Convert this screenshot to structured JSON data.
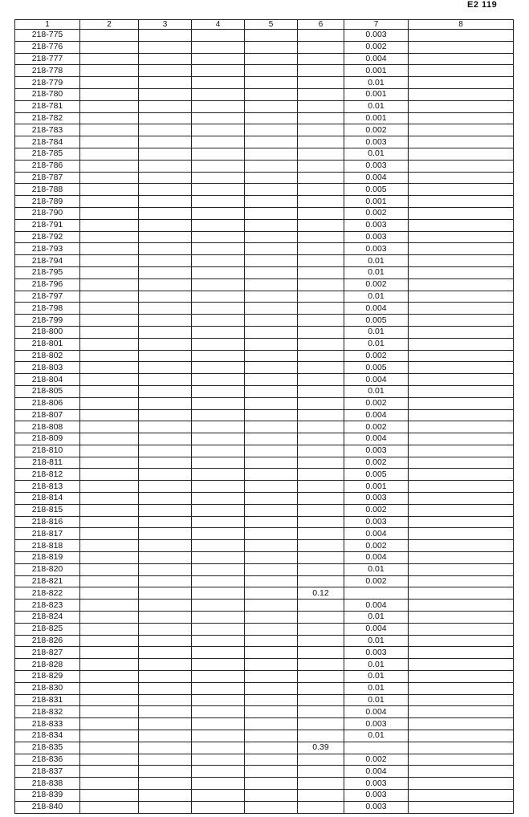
{
  "page_label": "E2 119",
  "headers": [
    "1",
    "2",
    "3",
    "4",
    "5",
    "6",
    "7",
    "8"
  ],
  "rows": [
    [
      "218-775",
      "",
      "",
      "",
      "",
      "",
      "0.003",
      ""
    ],
    [
      "218-776",
      "",
      "",
      "",
      "",
      "",
      "0.002",
      ""
    ],
    [
      "218-777",
      "",
      "",
      "",
      "",
      "",
      "0.004",
      ""
    ],
    [
      "218-778",
      "",
      "",
      "",
      "",
      "",
      "0.001",
      ""
    ],
    [
      "218-779",
      "",
      "",
      "",
      "",
      "",
      "0.01",
      ""
    ],
    [
      "218-780",
      "",
      "",
      "",
      "",
      "",
      "0.001",
      ""
    ],
    [
      "218-781",
      "",
      "",
      "",
      "",
      "",
      "0.01",
      ""
    ],
    [
      "218-782",
      "",
      "",
      "",
      "",
      "",
      "0.001",
      ""
    ],
    [
      "218-783",
      "",
      "",
      "",
      "",
      "",
      "0.002",
      ""
    ],
    [
      "218-784",
      "",
      "",
      "",
      "",
      "",
      "0.003",
      ""
    ],
    [
      "218-785",
      "",
      "",
      "",
      "",
      "",
      "0.01",
      ""
    ],
    [
      "218-786",
      "",
      "",
      "",
      "",
      "",
      "0.003",
      ""
    ],
    [
      "218-787",
      "",
      "",
      "",
      "",
      "",
      "0.004",
      ""
    ],
    [
      "218-788",
      "",
      "",
      "",
      "",
      "",
      "0.005",
      ""
    ],
    [
      "218-789",
      "",
      "",
      "",
      "",
      "",
      "0.001",
      ""
    ],
    [
      "218-790",
      "",
      "",
      "",
      "",
      "",
      "0.002",
      ""
    ],
    [
      "218-791",
      "",
      "",
      "",
      "",
      "",
      "0.003",
      ""
    ],
    [
      "218-792",
      "",
      "",
      "",
      "",
      "",
      "0.003",
      ""
    ],
    [
      "218-793",
      "",
      "",
      "",
      "",
      "",
      "0.003",
      ""
    ],
    [
      "218-794",
      "",
      "",
      "",
      "",
      "",
      "0.01",
      ""
    ],
    [
      "218-795",
      "",
      "",
      "",
      "",
      "",
      "0.01",
      ""
    ],
    [
      "218-796",
      "",
      "",
      "",
      "",
      "",
      "0.002",
      ""
    ],
    [
      "218-797",
      "",
      "",
      "",
      "",
      "",
      "0.01",
      ""
    ],
    [
      "218-798",
      "",
      "",
      "",
      "",
      "",
      "0.004",
      ""
    ],
    [
      "218-799",
      "",
      "",
      "",
      "",
      "",
      "0.005",
      ""
    ],
    [
      "218-800",
      "",
      "",
      "",
      "",
      "",
      "0.01",
      ""
    ],
    [
      "218-801",
      "",
      "",
      "",
      "",
      "",
      "0.01",
      ""
    ],
    [
      "218-802",
      "",
      "",
      "",
      "",
      "",
      "0.002",
      ""
    ],
    [
      "218-803",
      "",
      "",
      "",
      "",
      "",
      "0.005",
      ""
    ],
    [
      "218-804",
      "",
      "",
      "",
      "",
      "",
      "0.004",
      ""
    ],
    [
      "218-805",
      "",
      "",
      "",
      "",
      "",
      "0.01",
      ""
    ],
    [
      "218-806",
      "",
      "",
      "",
      "",
      "",
      "0.002",
      ""
    ],
    [
      "218-807",
      "",
      "",
      "",
      "",
      "",
      "0.004",
      ""
    ],
    [
      "218-808",
      "",
      "",
      "",
      "",
      "",
      "0.002",
      ""
    ],
    [
      "218-809",
      "",
      "",
      "",
      "",
      "",
      "0.004",
      ""
    ],
    [
      "218-810",
      "",
      "",
      "",
      "",
      "",
      "0.003",
      ""
    ],
    [
      "218-811",
      "",
      "",
      "",
      "",
      "",
      "0.002",
      ""
    ],
    [
      "218-812",
      "",
      "",
      "",
      "",
      "",
      "0.005",
      ""
    ],
    [
      "218-813",
      "",
      "",
      "",
      "",
      "",
      "0.001",
      ""
    ],
    [
      "218-814",
      "",
      "",
      "",
      "",
      "",
      "0.003",
      ""
    ],
    [
      "218-815",
      "",
      "",
      "",
      "",
      "",
      "0.002",
      ""
    ],
    [
      "218-816",
      "",
      "",
      "",
      "",
      "",
      "0.003",
      ""
    ],
    [
      "218-817",
      "",
      "",
      "",
      "",
      "",
      "0.004",
      ""
    ],
    [
      "218-818",
      "",
      "",
      "",
      "",
      "",
      "0.002",
      ""
    ],
    [
      "218-819",
      "",
      "",
      "",
      "",
      "",
      "0.004",
      ""
    ],
    [
      "218-820",
      "",
      "",
      "",
      "",
      "",
      "0.01",
      ""
    ],
    [
      "218-821",
      "",
      "",
      "",
      "",
      "",
      "0.002",
      ""
    ],
    [
      "218-822",
      "",
      "",
      "",
      "",
      "0.12",
      "",
      ""
    ],
    [
      "218-823",
      "",
      "",
      "",
      "",
      "",
      "0.004",
      ""
    ],
    [
      "218-824",
      "",
      "",
      "",
      "",
      "",
      "0.01",
      ""
    ],
    [
      "218-825",
      "",
      "",
      "",
      "",
      "",
      "0.004",
      ""
    ],
    [
      "218-826",
      "",
      "",
      "",
      "",
      "",
      "0.01",
      ""
    ],
    [
      "218-827",
      "",
      "",
      "",
      "",
      "",
      "0.003",
      ""
    ],
    [
      "218-828",
      "",
      "",
      "",
      "",
      "",
      "0.01",
      ""
    ],
    [
      "218-829",
      "",
      "",
      "",
      "",
      "",
      "0.01",
      ""
    ],
    [
      "218-830",
      "",
      "",
      "",
      "",
      "",
      "0.01",
      ""
    ],
    [
      "218-831",
      "",
      "",
      "",
      "",
      "",
      "0.01",
      ""
    ],
    [
      "218-832",
      "",
      "",
      "",
      "",
      "",
      "0.004",
      ""
    ],
    [
      "218-833",
      "",
      "",
      "",
      "",
      "",
      "0.003",
      ""
    ],
    [
      "218-834",
      "",
      "",
      "",
      "",
      "",
      "0.01",
      ""
    ],
    [
      "218-835",
      "",
      "",
      "",
      "",
      "0.39",
      "",
      ""
    ],
    [
      "218-836",
      "",
      "",
      "",
      "",
      "",
      "0.002",
      ""
    ],
    [
      "218-837",
      "",
      "",
      "",
      "",
      "",
      "0.004",
      ""
    ],
    [
      "218-838",
      "",
      "",
      "",
      "",
      "",
      "0.003",
      ""
    ],
    [
      "218-839",
      "",
      "",
      "",
      "",
      "",
      "0.003",
      ""
    ],
    [
      "218-840",
      "",
      "",
      "",
      "",
      "",
      "0.003",
      ""
    ]
  ]
}
